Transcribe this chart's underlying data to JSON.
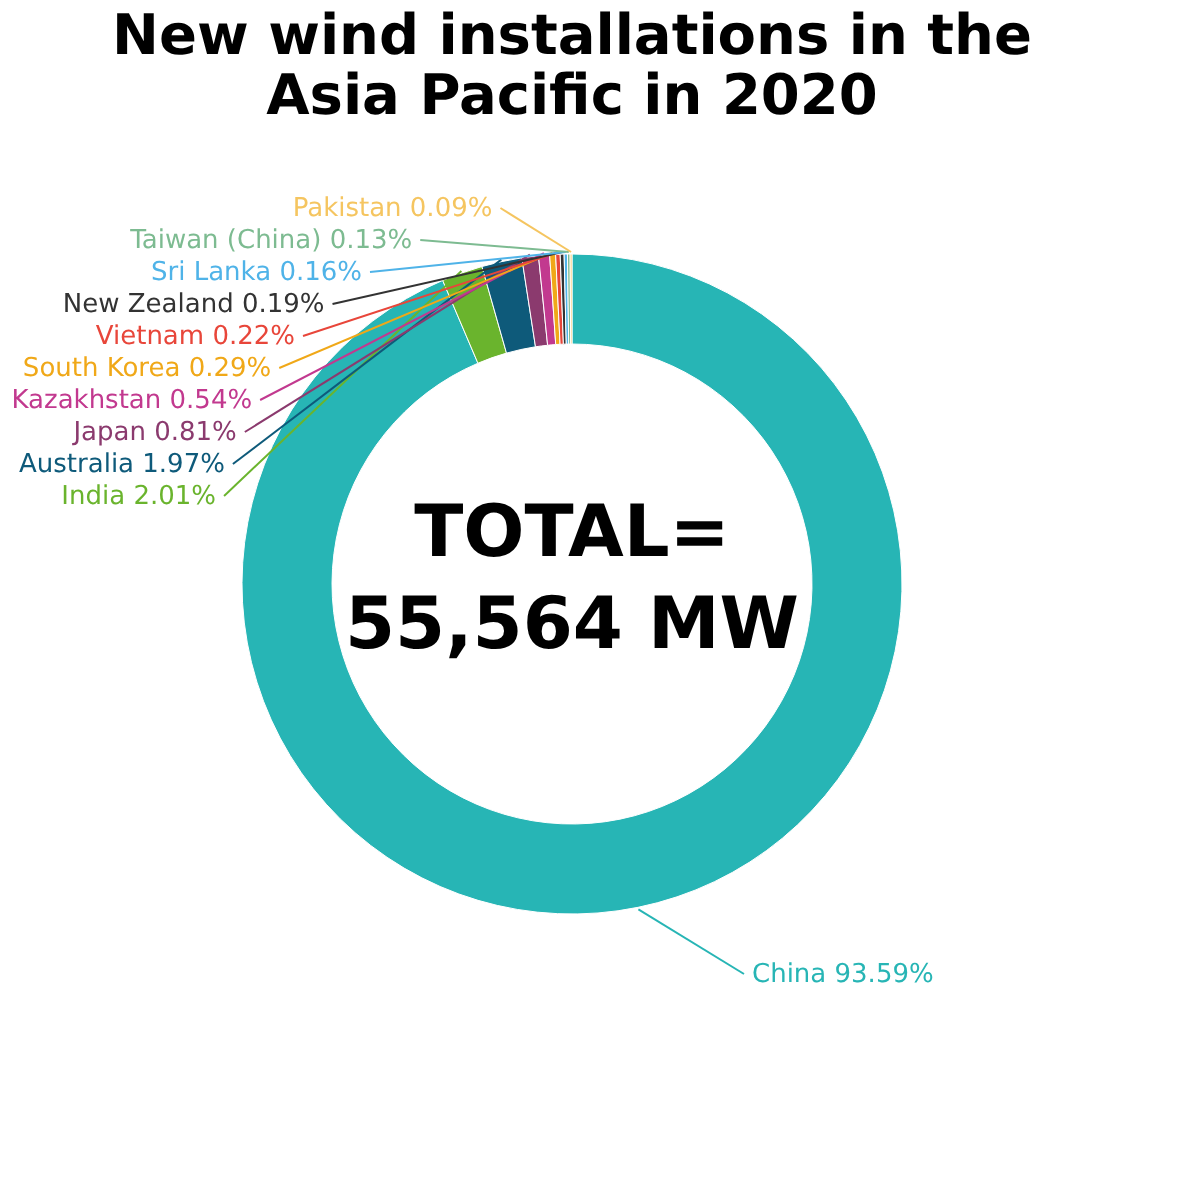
{
  "chart_data": {
    "type": "donut",
    "title": "New wind installations in the\nAsia Pacific in 2020",
    "categories": [
      "China",
      "India",
      "Australia",
      "Japan",
      "Kazakhstan",
      "South Korea",
      "Vietnam",
      "New Zealand",
      "Sri Lanka",
      "Taiwan (China)",
      "Pakistan"
    ],
    "values": [
      93.59,
      2.01,
      1.97,
      0.81,
      0.54,
      0.29,
      0.22,
      0.19,
      0.16,
      0.13,
      0.09
    ],
    "value_labels": [
      "93.59%",
      "2.01%",
      "1.97%",
      "0.81%",
      "0.54%",
      "0.29%",
      "0.22%",
      "0.19%",
      "0.16%",
      "0.13%",
      "0.09%"
    ],
    "colors": [
      "#27b5b5",
      "#6ab42d",
      "#0e5a7a",
      "#8b3a6e",
      "#c2398f",
      "#f0a818",
      "#e8463a",
      "#333333",
      "#4fb3e8",
      "#7dbb91",
      "#f5c560"
    ],
    "annotations": [
      "TOTAL=\n55,564 MW"
    ],
    "legend": false
  }
}
